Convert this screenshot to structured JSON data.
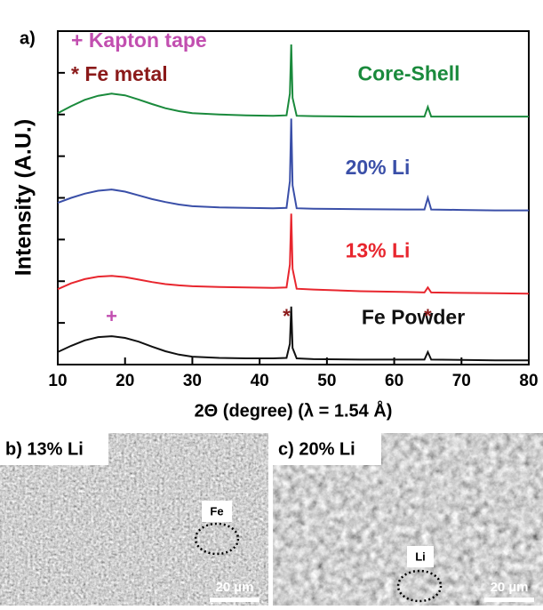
{
  "chart_data": {
    "type": "line",
    "panel_label": "a)",
    "x_label": "2Θ (degree) (λ = 1.54 Å)",
    "y_label": "Intensity (A.U.)",
    "xlim": [
      10,
      80
    ],
    "xticks": [
      10,
      20,
      30,
      40,
      50,
      60,
      70,
      80
    ],
    "ylim": [
      0,
      8
    ],
    "yticks": [
      0,
      1,
      2,
      3,
      4,
      5,
      6,
      7,
      8
    ],
    "x": [
      10,
      12,
      14,
      16,
      18,
      20,
      22,
      24,
      26,
      28,
      30,
      34,
      38,
      42,
      44,
      44.5,
      44.7,
      44.9,
      45.5,
      48,
      55,
      62,
      64.5,
      65,
      65.5,
      70,
      75,
      80
    ],
    "series": [
      {
        "name": "Fe Powder",
        "color": "#111111",
        "values": [
          0.3,
          0.45,
          0.58,
          0.66,
          0.68,
          0.64,
          0.55,
          0.43,
          0.32,
          0.24,
          0.19,
          0.16,
          0.15,
          0.15,
          0.16,
          0.5,
          1.39,
          0.4,
          0.15,
          0.13,
          0.12,
          0.12,
          0.12,
          0.3,
          0.12,
          0.11,
          0.1,
          0.1
        ]
      },
      {
        "name": "13% Li",
        "color": "#e8262e",
        "values": [
          1.81,
          1.95,
          2.05,
          2.11,
          2.13,
          2.1,
          2.04,
          1.98,
          1.93,
          1.9,
          1.88,
          1.86,
          1.85,
          1.84,
          1.85,
          2.4,
          3.62,
          2.3,
          1.82,
          1.8,
          1.76,
          1.74,
          1.73,
          1.85,
          1.73,
          1.72,
          1.71,
          1.7
        ]
      },
      {
        "name": "20% Li",
        "color": "#3a4fa8",
        "values": [
          3.88,
          4.0,
          4.1,
          4.17,
          4.2,
          4.15,
          4.06,
          3.97,
          3.9,
          3.84,
          3.8,
          3.77,
          3.76,
          3.75,
          3.76,
          4.4,
          5.9,
          4.3,
          3.75,
          3.74,
          3.73,
          3.72,
          3.72,
          4.0,
          3.72,
          3.71,
          3.7,
          3.7
        ]
      },
      {
        "name": "Core-Shell",
        "color": "#1a8a3c",
        "values": [
          6.03,
          6.2,
          6.35,
          6.45,
          6.5,
          6.46,
          6.36,
          6.25,
          6.15,
          6.08,
          6.03,
          6.0,
          5.98,
          5.97,
          5.98,
          6.5,
          7.68,
          6.4,
          5.97,
          5.96,
          5.95,
          5.95,
          5.95,
          6.18,
          5.95,
          5.95,
          5.95,
          5.95
        ]
      }
    ],
    "key": [
      {
        "text": "+ Kapton tape",
        "color": "#c24fb0"
      },
      {
        "text": "* Fe metal",
        "color": "#8b1a1a"
      }
    ],
    "markers": [
      {
        "text": "+",
        "x": 18,
        "color": "#c24fb0"
      },
      {
        "text": "*",
        "x": 44,
        "color": "#8b1a1a"
      },
      {
        "text": "*",
        "x": 65,
        "color": "#8b1a1a"
      }
    ]
  },
  "images": [
    {
      "label": "b) 13% Li",
      "region": "Fe",
      "scale_bar": "20 µm"
    },
    {
      "label": "c) 20% Li",
      "region": "Li",
      "scale_bar": "20 µm"
    }
  ]
}
